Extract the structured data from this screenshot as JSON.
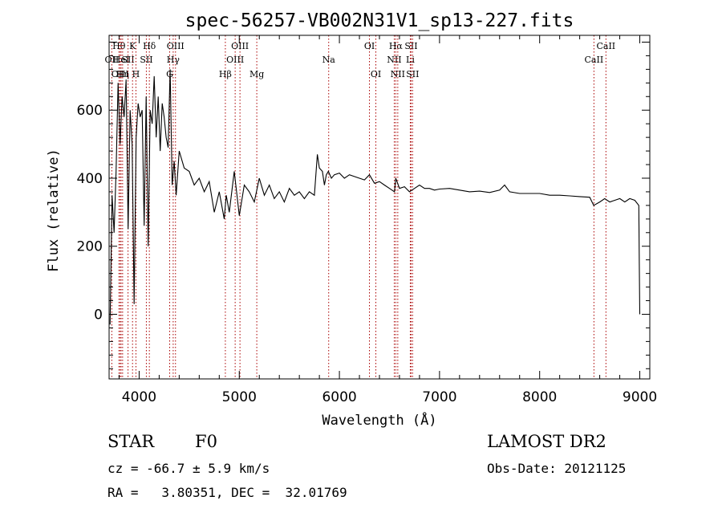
{
  "chart_data": {
    "type": "line",
    "title": "spec-56257-VB002N31V1_sp13-227.fits",
    "xlabel": "Wavelength (Å)",
    "ylabel": "Flux (relative)",
    "xlim": [
      3700,
      9100
    ],
    "ylim": [
      -190,
      820
    ],
    "xticks": [
      4000,
      5000,
      6000,
      7000,
      8000,
      9000
    ],
    "yticks": [
      0,
      200,
      400,
      600
    ],
    "x_minor_step": 200,
    "y_minor_step": 40,
    "line_color": "#000000",
    "marker_color": "#aa0000",
    "series": [
      {
        "x": [
          3710,
          3730,
          3750,
          3770,
          3790,
          3810,
          3830,
          3850,
          3870,
          3890,
          3910,
          3930,
          3950,
          3970,
          3990,
          4010,
          4030,
          4050,
          4070,
          4090,
          4110,
          4130,
          4150,
          4170,
          4190,
          4210,
          4230,
          4250,
          4270,
          4290,
          4310,
          4330,
          4350,
          4370,
          4400,
          4450,
          4500,
          4550,
          4600,
          4650,
          4700,
          4750,
          4800,
          4850,
          4870,
          4900,
          4950,
          5000,
          5050,
          5100,
          5150,
          5200,
          5250,
          5300,
          5350,
          5400,
          5450,
          5500,
          5550,
          5600,
          5650,
          5700,
          5750,
          5780,
          5800,
          5830,
          5850,
          5870,
          5890,
          5920,
          5950,
          6000,
          6050,
          6100,
          6150,
          6200,
          6250,
          6300,
          6350,
          6400,
          6450,
          6500,
          6550,
          6563,
          6600,
          6650,
          6700,
          6750,
          6800,
          6850,
          6900,
          6950,
          7000,
          7100,
          7200,
          7300,
          7400,
          7500,
          7600,
          7650,
          7700,
          7800,
          7900,
          8000,
          8100,
          8200,
          8300,
          8400,
          8500,
          8540,
          8600,
          8650,
          8700,
          8750,
          8800,
          8850,
          8900,
          8950,
          8990,
          8995,
          9000
        ],
        "y": [
          -30,
          350,
          240,
          420,
          680,
          500,
          640,
          580,
          690,
          250,
          600,
          500,
          30,
          520,
          620,
          580,
          600,
          260,
          640,
          200,
          600,
          560,
          700,
          520,
          640,
          480,
          620,
          580,
          520,
          490,
          720,
          380,
          450,
          350,
          480,
          430,
          420,
          380,
          400,
          360,
          390,
          300,
          360,
          280,
          350,
          300,
          420,
          290,
          380,
          360,
          330,
          400,
          350,
          380,
          340,
          360,
          330,
          370,
          350,
          360,
          340,
          360,
          350,
          470,
          430,
          420,
          380,
          410,
          420,
          400,
          410,
          415,
          400,
          410,
          405,
          400,
          395,
          410,
          385,
          390,
          380,
          370,
          360,
          400,
          370,
          375,
          360,
          370,
          380,
          370,
          370,
          365,
          368,
          370,
          365,
          360,
          362,
          358,
          365,
          380,
          360,
          355,
          355,
          355,
          350,
          350,
          348,
          346,
          344,
          320,
          330,
          340,
          330,
          335,
          340,
          330,
          340,
          335,
          320,
          150,
          0
        ]
      }
    ],
    "lines": [
      {
        "name": "OII",
        "wave": 3727,
        "row": 2
      },
      {
        "name": "Hθ",
        "wave": 3798,
        "row": 1
      },
      {
        "name": "OIII",
        "wave": 3810,
        "row": 3
      },
      {
        "name": "HeI",
        "wave": 3820,
        "row": 2
      },
      {
        "name": "Hη",
        "wave": 3835,
        "row": 3
      },
      {
        "name": "SII",
        "wave": 3889,
        "row": 2
      },
      {
        "name": "K",
        "wave": 3934,
        "row": 1
      },
      {
        "name": "H",
        "wave": 3968,
        "row": 3
      },
      {
        "name": "Hδ",
        "wave": 4102,
        "row": 1
      },
      {
        "name": "SII",
        "wave": 4072,
        "row": 2
      },
      {
        "name": "G",
        "wave": 4305,
        "row": 3
      },
      {
        "name": "Hγ",
        "wave": 4340,
        "row": 2
      },
      {
        "name": "OIII",
        "wave": 4363,
        "row": 1
      },
      {
        "name": "Hβ",
        "wave": 4861,
        "row": 3
      },
      {
        "name": "OIII",
        "wave": 4959,
        "row": 2
      },
      {
        "name": "OIII",
        "wave": 5007,
        "row": 1
      },
      {
        "name": "Mg",
        "wave": 5175,
        "row": 3
      },
      {
        "name": "Na",
        "wave": 5893,
        "row": 2
      },
      {
        "name": "OI",
        "wave": 6300,
        "row": 1
      },
      {
        "name": "OI",
        "wave": 6364,
        "row": 3
      },
      {
        "name": "NII",
        "wave": 6548,
        "row": 2
      },
      {
        "name": "Hα",
        "wave": 6563,
        "row": 1
      },
      {
        "name": "NII",
        "wave": 6583,
        "row": 3
      },
      {
        "name": "Li",
        "wave": 6708,
        "row": 2
      },
      {
        "name": "SII",
        "wave": 6716,
        "row": 1
      },
      {
        "name": "SII",
        "wave": 6731,
        "row": 3
      },
      {
        "name": "CaII",
        "wave": 8542,
        "row": 2
      },
      {
        "name": "CaII",
        "wave": 8662,
        "row": 1
      }
    ]
  },
  "info": {
    "class_label": "STAR",
    "subclass": "F0",
    "redshift": "cz = -66.7 ± 5.9 km/s",
    "coords": "RA =   3.80351, DEC =  32.01769",
    "survey": "LAMOST DR2",
    "obs_date": "Obs-Date: 20121125"
  }
}
